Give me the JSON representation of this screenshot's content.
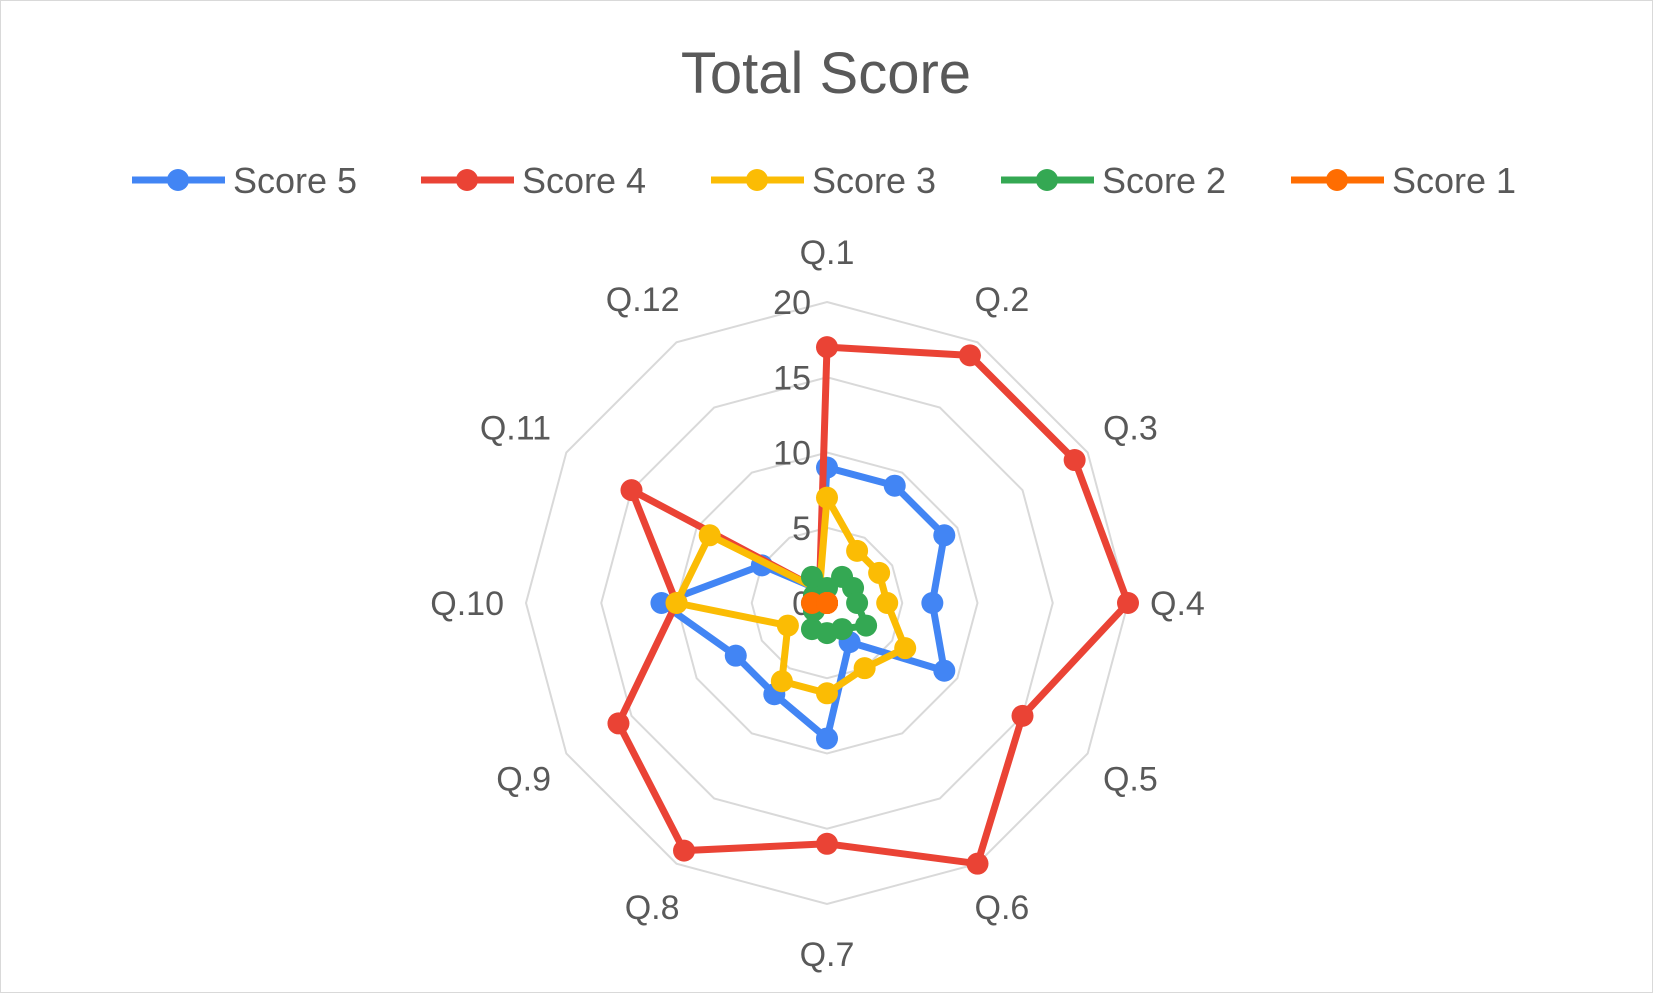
{
  "chart_data": {
    "type": "radar",
    "title": "Total Score",
    "categories": [
      "Q.1",
      "Q.2",
      "Q.3",
      "Q.4",
      "Q.5",
      "Q.6",
      "Q.7",
      "Q.8",
      "Q.9",
      "Q.10",
      "Q.11",
      "Q.12"
    ],
    "rlim": [
      0,
      20
    ],
    "ticks": [
      "0",
      "5",
      "10",
      "15",
      "20"
    ],
    "tick_values": [
      0,
      5,
      10,
      15,
      20
    ],
    "grid": true,
    "legend_position": "top",
    "series": [
      {
        "name": "Score 5",
        "color": "#4285f4",
        "values": [
          9,
          9,
          9,
          7,
          9,
          3,
          9,
          7,
          7,
          11,
          5,
          1
        ]
      },
      {
        "name": "Score 4",
        "color": "#ea4335",
        "values": [
          17,
          19,
          19,
          20,
          15,
          20,
          16,
          19,
          16,
          10,
          15,
          1
        ]
      },
      {
        "name": "Score 3",
        "color": "#fbbc04",
        "values": [
          7,
          4,
          4,
          4,
          6,
          5,
          6,
          6,
          3,
          10,
          9,
          1
        ]
      },
      {
        "name": "Score 2",
        "color": "#34a853",
        "values": [
          1,
          2,
          2,
          2,
          3,
          2,
          2,
          2,
          1,
          1,
          1,
          2
        ]
      },
      {
        "name": "Score 1",
        "color": "#ff6d01",
        "values": [
          0,
          0,
          0,
          0,
          0,
          0,
          0,
          0,
          0,
          1,
          0,
          0
        ]
      }
    ]
  }
}
